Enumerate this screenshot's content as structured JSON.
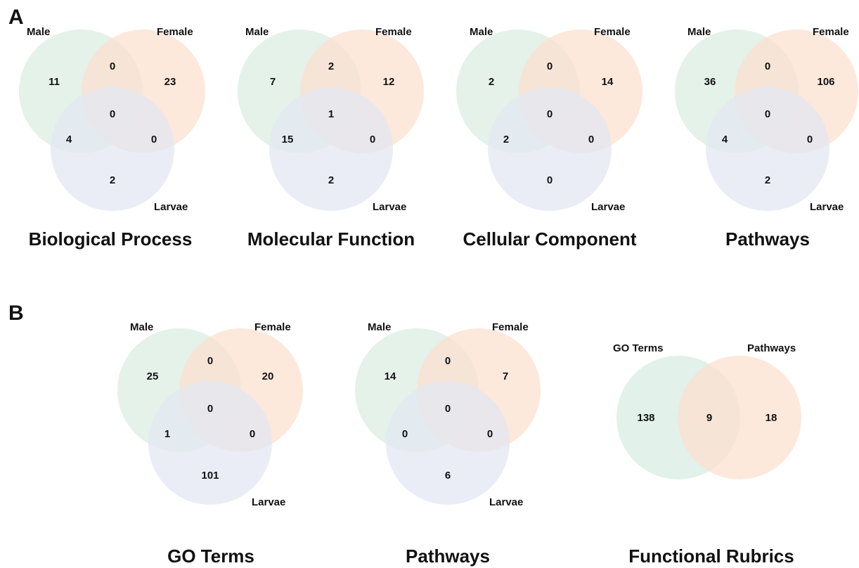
{
  "colors": {
    "male": "#dbeee3",
    "female": "#fce0d0",
    "larvae": "#e3e7f1",
    "go_terms": "#dbeee3",
    "pathways": "#fce0d0"
  },
  "panel_a": {
    "letter": "A",
    "diagrams": [
      {
        "title": "Biological Process",
        "labels": {
          "male": "Male",
          "female": "Female",
          "larvae": "Larvae"
        },
        "regions": {
          "male_only": "11",
          "male_female": "0",
          "female_only": "23",
          "all": "0",
          "male_larvae": "4",
          "female_larvae": "0",
          "larvae_only": "2"
        }
      },
      {
        "title": "Molecular Function",
        "labels": {
          "male": "Male",
          "female": "Female",
          "larvae": "Larvae"
        },
        "regions": {
          "male_only": "7",
          "male_female": "2",
          "female_only": "12",
          "all": "1",
          "male_larvae": "15",
          "female_larvae": "0",
          "larvae_only": "2"
        }
      },
      {
        "title": "Cellular Component",
        "labels": {
          "male": "Male",
          "female": "Female",
          "larvae": "Larvae"
        },
        "regions": {
          "male_only": "2",
          "male_female": "0",
          "female_only": "14",
          "all": "0",
          "male_larvae": "2",
          "female_larvae": "0",
          "larvae_only": "0"
        }
      },
      {
        "title": "Pathways",
        "labels": {
          "male": "Male",
          "female": "Female",
          "larvae": "Larvae"
        },
        "regions": {
          "male_only": "36",
          "male_female": "0",
          "female_only": "106",
          "all": "0",
          "male_larvae": "4",
          "female_larvae": "0",
          "larvae_only": "2"
        }
      }
    ]
  },
  "panel_b": {
    "letter": "B",
    "diagrams": [
      {
        "title": "GO Terms",
        "labels": {
          "male": "Male",
          "female": "Female",
          "larvae": "Larvae"
        },
        "regions": {
          "male_only": "25",
          "male_female": "0",
          "female_only": "20",
          "all": "0",
          "male_larvae": "1",
          "female_larvae": "0",
          "larvae_only": "101"
        }
      },
      {
        "title": "Pathways",
        "labels": {
          "male": "Male",
          "female": "Female",
          "larvae": "Larvae"
        },
        "regions": {
          "male_only": "14",
          "male_female": "0",
          "female_only": "7",
          "all": "0",
          "male_larvae": "0",
          "female_larvae": "0",
          "larvae_only": "6"
        }
      }
    ],
    "two_set": {
      "title": "Functional Rubrics",
      "labels": {
        "left": "GO Terms",
        "right": "Pathways"
      },
      "regions": {
        "left_only": "138",
        "both": "9",
        "right_only": "18"
      }
    }
  }
}
